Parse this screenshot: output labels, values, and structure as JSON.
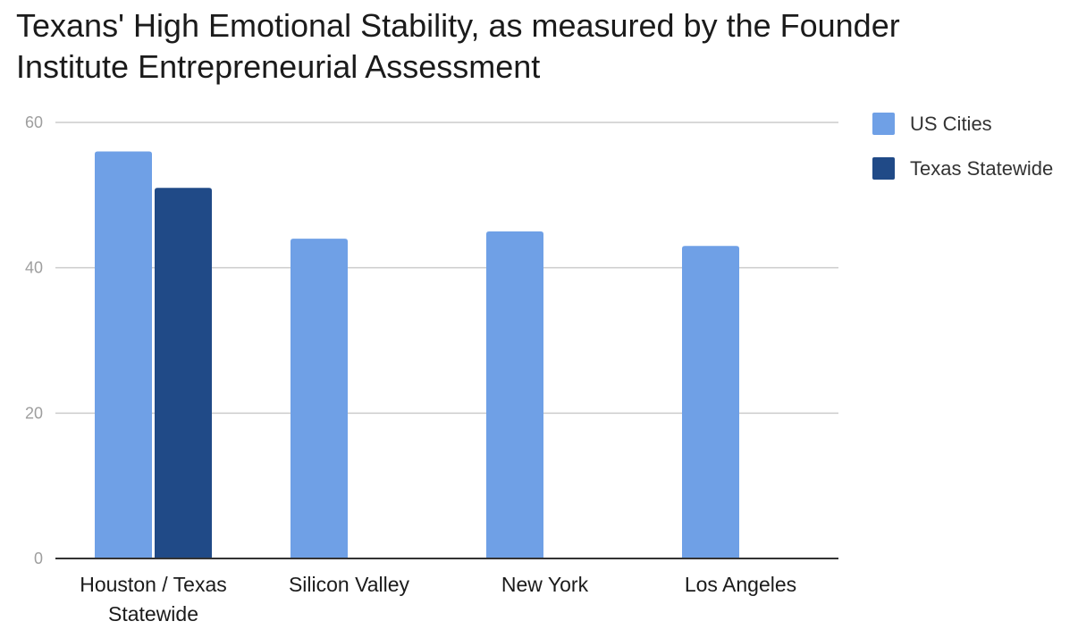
{
  "chart_data": {
    "type": "bar",
    "title_lines": [
      "Texans' High Emotional Stability, as measured by the Founder",
      "Institute Entrepreneurial Assessment"
    ],
    "categories": [
      [
        "Houston / Texas",
        "Statewide"
      ],
      [
        "Silicon Valley"
      ],
      [
        "New York"
      ],
      [
        "Los Angeles"
      ]
    ],
    "series": [
      {
        "name": "US Cities",
        "color": "#6fa0e6",
        "values": [
          56,
          44,
          45,
          43
        ]
      },
      {
        "name": "Texas Statewide",
        "color": "#204a87",
        "values": [
          51,
          null,
          null,
          null
        ]
      }
    ],
    "ylim": [
      0,
      60
    ],
    "yticks": [
      0,
      20,
      40,
      60
    ],
    "grid": true,
    "legend": "top-right",
    "xlabel": "",
    "ylabel": ""
  }
}
